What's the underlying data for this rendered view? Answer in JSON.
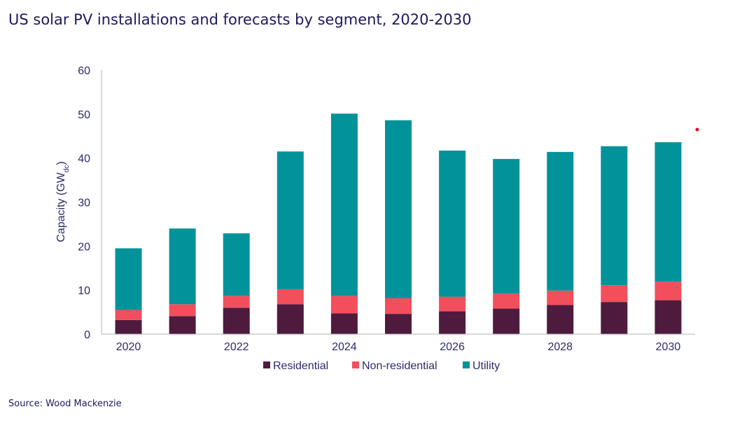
{
  "title": "US solar PV installations and forecasts by segment, 2020-2030",
  "source": "Source: Wood Mackenzie",
  "chart_data": {
    "type": "bar",
    "stacked": true,
    "categories": [
      "2020",
      "2021",
      "2022",
      "2023",
      "2024",
      "2025",
      "2026",
      "2027",
      "2028",
      "2029",
      "2030"
    ],
    "x_tick_labels": [
      "2020",
      "",
      "2022",
      "",
      "2024",
      "",
      "2026",
      "",
      "2028",
      "",
      "2030"
    ],
    "ylabel": "Capacity (GWdc)",
    "ylabel_main": "Capacity (GW",
    "ylabel_sub": "dc",
    "ylabel_close": ")",
    "ylim": [
      0,
      60
    ],
    "yticks": [
      0,
      10,
      20,
      30,
      40,
      50,
      60
    ],
    "grid": false,
    "legend_position": "bottom",
    "series": [
      {
        "name": "Residential",
        "color": "#4e1a3e",
        "values": [
          3.2,
          4.1,
          6.0,
          6.8,
          4.7,
          4.6,
          5.2,
          5.8,
          6.6,
          7.3,
          7.7
        ]
      },
      {
        "name": "Non-residential",
        "color": "#f24e5c",
        "values": [
          2.3,
          2.7,
          2.7,
          3.4,
          4.0,
          3.6,
          3.3,
          3.4,
          3.3,
          3.8,
          4.2
        ]
      },
      {
        "name": "Utility",
        "color": "#02939a",
        "values": [
          14.0,
          17.2,
          14.2,
          31.3,
          41.4,
          40.4,
          33.2,
          30.6,
          31.5,
          31.6,
          31.7
        ]
      }
    ],
    "marker_color": "#e8002a"
  }
}
